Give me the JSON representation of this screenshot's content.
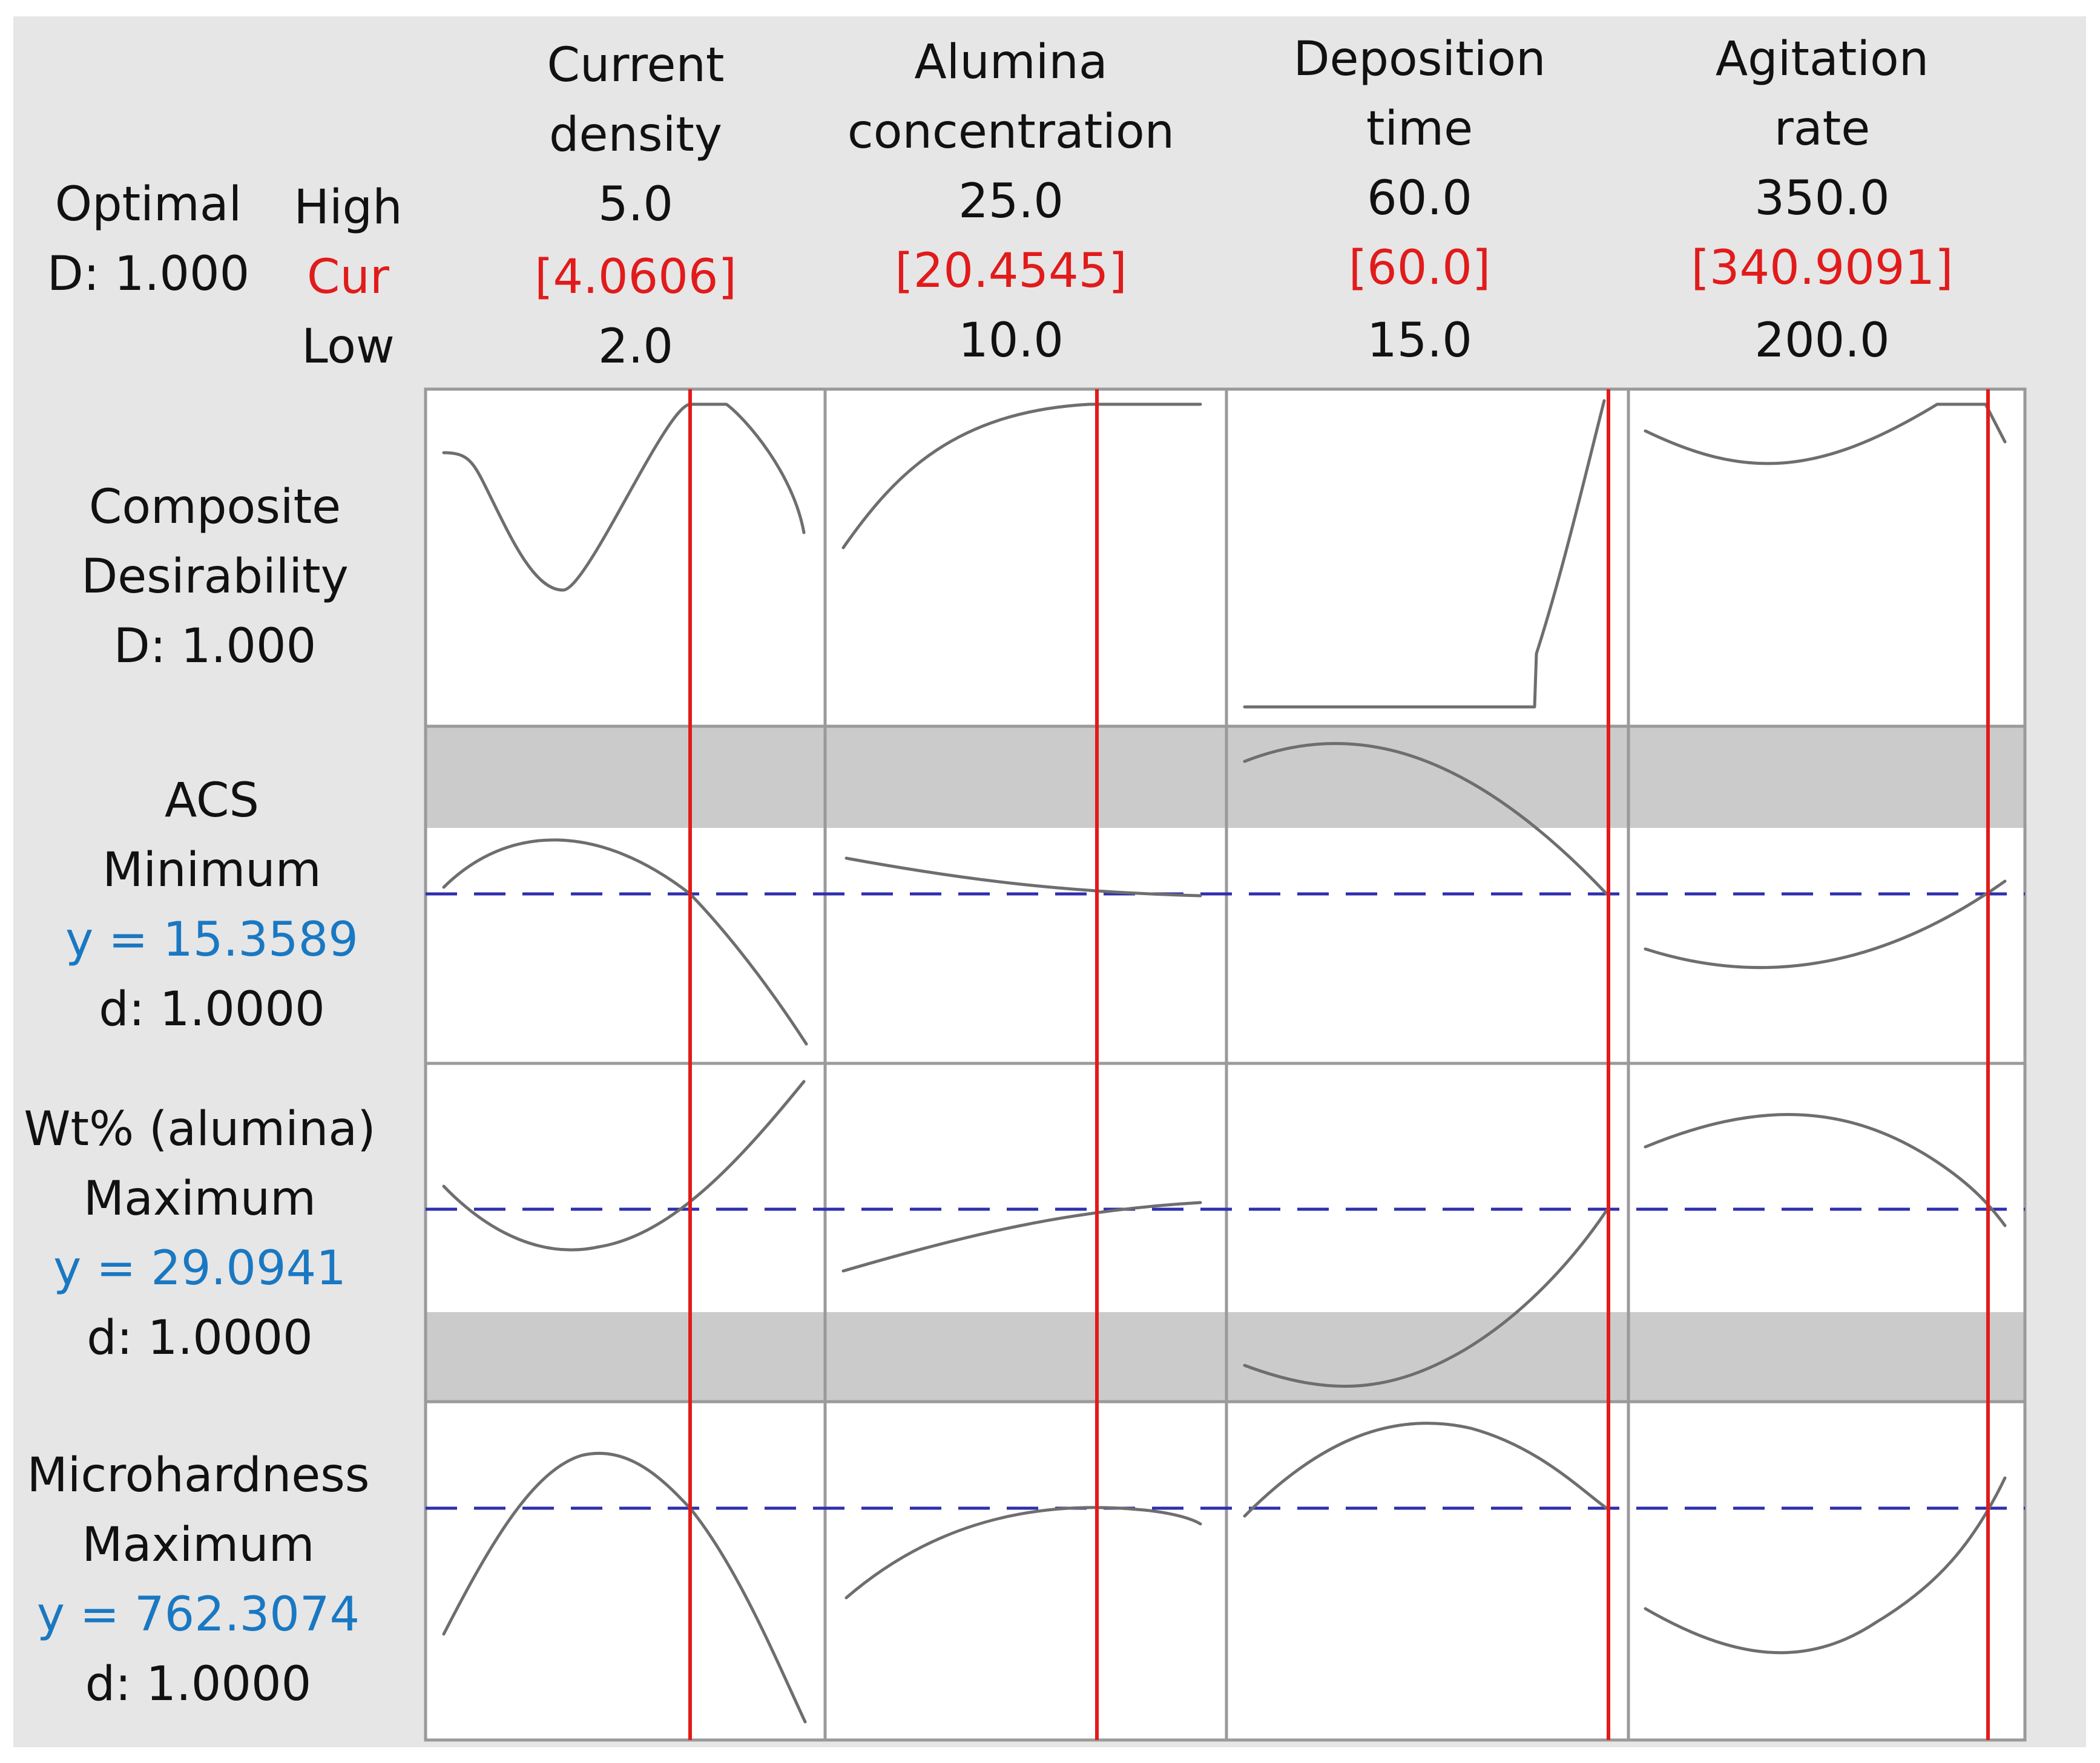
{
  "header": {
    "optimal_label": "Optimal",
    "d_label": "D: 1.000",
    "high_label": "High",
    "cur_label": "Cur",
    "low_label": "Low"
  },
  "factors": [
    {
      "title_line1": "Current",
      "title_line2": "density",
      "high": "5.0",
      "cur": "[4.0606]",
      "low": "2.0"
    },
    {
      "title_line1": "Alumina",
      "title_line2": "concentration",
      "high": "25.0",
      "cur": "[20.4545]",
      "low": "10.0"
    },
    {
      "title_line1": "Deposition",
      "title_line2": "time",
      "high": "60.0",
      "cur": "[60.0]",
      "low": "15.0"
    },
    {
      "title_line1": "Agitation",
      "title_line2": "rate",
      "high": "350.0",
      "cur": "[340.9091]",
      "low": "200.0"
    }
  ],
  "rows": [
    {
      "line1": "Composite",
      "line2": "Desirability",
      "line3": "D: 1.000",
      "line4": ""
    },
    {
      "line1": "ACS",
      "line2": "Minimum",
      "line3": "y = 15.3589",
      "line4": "d: 1.0000"
    },
    {
      "line1": "Wt% (alumina)",
      "line2": "Maximum",
      "line3": "y = 29.0941",
      "line4": "d: 1.0000"
    },
    {
      "line1": "Microhardness",
      "line2": "Maximum",
      "line3": "y = 762.3074",
      "line4": "d: 1.0000"
    }
  ],
  "colors": {
    "red": "#e11b1b",
    "blue_text": "#1a78c2",
    "ref_line": "#2f2fae",
    "curve": "#6e6e6e",
    "shade": "#c8c8c8",
    "background": "#e6e6e6"
  },
  "chart_data": {
    "type": "line",
    "title": "",
    "factors": [
      {
        "name": "Current density",
        "low": 2.0,
        "high": 5.0,
        "current": 4.0606
      },
      {
        "name": "Alumina concentration",
        "low": 10.0,
        "high": 25.0,
        "current": 20.4545
      },
      {
        "name": "Deposition time",
        "low": 15.0,
        "high": 60.0,
        "current": 60.0
      },
      {
        "name": "Agitation rate",
        "low": 200.0,
        "high": 350.0,
        "current": 340.9091
      }
    ],
    "responses": [
      {
        "name": "Composite Desirability",
        "goal": "",
        "y": "",
        "d": 1.0
      },
      {
        "name": "ACS",
        "goal": "Minimum",
        "y": 15.3589,
        "d": 1.0
      },
      {
        "name": "Wt% (alumina)",
        "goal": "Maximum",
        "y": 29.0941,
        "d": 1.0
      },
      {
        "name": "Microhardness",
        "goal": "Maximum",
        "y": 762.3074,
        "d": 1.0
      }
    ],
    "legend": "none",
    "grid": false
  }
}
